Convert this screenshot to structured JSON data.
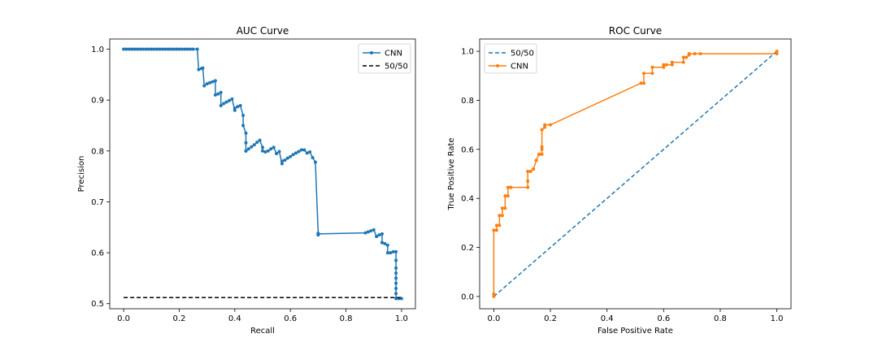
{
  "chart_data": [
    {
      "type": "line",
      "title": "AUC Curve",
      "xlabel": "Recall",
      "ylabel": "Precision",
      "xlim": [
        -0.05,
        1.05
      ],
      "ylim": [
        0.49,
        1.02
      ],
      "xticks": [
        0.0,
        0.2,
        0.4,
        0.6,
        0.8,
        1.0
      ],
      "xtick_labels": [
        "0.0",
        "0.2",
        "0.4",
        "0.6",
        "0.8",
        "1.0"
      ],
      "yticks": [
        0.5,
        0.6,
        0.7,
        0.8,
        0.9,
        1.0
      ],
      "ytick_labels": [
        "0.5",
        "0.6",
        "0.7",
        "0.8",
        "0.9",
        "1.0"
      ],
      "legend_position": "top-right",
      "series": [
        {
          "name": "CNN",
          "color": "#1f77b4",
          "style": "solid-marker",
          "x": [
            0.0,
            0.01,
            0.02,
            0.03,
            0.04,
            0.05,
            0.06,
            0.07,
            0.08,
            0.09,
            0.1,
            0.11,
            0.12,
            0.13,
            0.14,
            0.15,
            0.16,
            0.17,
            0.18,
            0.19,
            0.2,
            0.21,
            0.22,
            0.23,
            0.24,
            0.25,
            0.265,
            0.27,
            0.28,
            0.285,
            0.29,
            0.3,
            0.31,
            0.32,
            0.33,
            0.33,
            0.34,
            0.35,
            0.35,
            0.36,
            0.37,
            0.38,
            0.39,
            0.4,
            0.4,
            0.41,
            0.42,
            0.43,
            0.43,
            0.44,
            0.44,
            0.44,
            0.44,
            0.44,
            0.44,
            0.45,
            0.46,
            0.47,
            0.48,
            0.49,
            0.5,
            0.5,
            0.51,
            0.52,
            0.53,
            0.54,
            0.55,
            0.55,
            0.56,
            0.57,
            0.57,
            0.58,
            0.59,
            0.6,
            0.61,
            0.62,
            0.63,
            0.64,
            0.65,
            0.66,
            0.67,
            0.68,
            0.69,
            0.7,
            0.7,
            0.7,
            0.87,
            0.88,
            0.89,
            0.9,
            0.91,
            0.91,
            0.92,
            0.93,
            0.93,
            0.93,
            0.94,
            0.95,
            0.95,
            0.96,
            0.97,
            0.98,
            0.98,
            0.98,
            0.98,
            0.98,
            0.98,
            0.98,
            0.98,
            0.98,
            0.99,
            1.0
          ],
          "y": [
            1.0,
            1.0,
            1.0,
            1.0,
            1.0,
            1.0,
            1.0,
            1.0,
            1.0,
            1.0,
            1.0,
            1.0,
            1.0,
            1.0,
            1.0,
            1.0,
            1.0,
            1.0,
            1.0,
            1.0,
            1.0,
            1.0,
            1.0,
            1.0,
            1.0,
            1.0,
            1.0,
            0.96,
            0.962,
            0.963,
            0.928,
            0.932,
            0.934,
            0.936,
            0.938,
            0.91,
            0.912,
            0.915,
            0.889,
            0.893,
            0.896,
            0.899,
            0.902,
            0.88,
            0.884,
            0.887,
            0.889,
            0.87,
            0.85,
            0.835,
            0.816,
            0.8,
            0.8,
            0.8,
            0.8,
            0.804,
            0.808,
            0.812,
            0.817,
            0.821,
            0.807,
            0.8,
            0.798,
            0.8,
            0.804,
            0.807,
            0.795,
            0.795,
            0.799,
            0.775,
            0.78,
            0.782,
            0.786,
            0.789,
            0.793,
            0.796,
            0.799,
            0.802,
            0.802,
            0.796,
            0.798,
            0.787,
            0.778,
            0.638,
            0.635,
            0.637,
            0.639,
            0.641,
            0.643,
            0.645,
            0.632,
            0.632,
            0.635,
            0.637,
            0.62,
            0.62,
            0.618,
            0.615,
            0.6,
            0.6,
            0.602,
            0.602,
            0.585,
            0.57,
            0.56,
            0.55,
            0.54,
            0.53,
            0.52,
            0.51,
            0.51,
            0.51
          ]
        },
        {
          "name": "50/50",
          "color": "#000000",
          "style": "dashed",
          "x": [
            0.0,
            1.0
          ],
          "y": [
            0.512,
            0.512
          ]
        }
      ]
    },
    {
      "type": "line",
      "title": "ROC Curve",
      "xlabel": "False Positive Rate",
      "ylabel": "True Positive Rate",
      "xlim": [
        -0.05,
        1.05
      ],
      "ylim": [
        -0.05,
        1.05
      ],
      "xticks": [
        0.0,
        0.2,
        0.4,
        0.6,
        0.8,
        1.0
      ],
      "xtick_labels": [
        "0.0",
        "0.2",
        "0.4",
        "0.6",
        "0.8",
        "1.0"
      ],
      "yticks": [
        0.0,
        0.2,
        0.4,
        0.6,
        0.8,
        1.0
      ],
      "ytick_labels": [
        "0.0",
        "0.2",
        "0.4",
        "0.6",
        "0.8",
        "1.0"
      ],
      "legend_position": "top-left",
      "series": [
        {
          "name": "50/50",
          "color": "#1f77b4",
          "style": "dashed",
          "x": [
            0.0,
            1.0
          ],
          "y": [
            0.0,
            1.0
          ]
        },
        {
          "name": "CNN",
          "color": "#ff7f0e",
          "style": "solid-marker",
          "x": [
            0.0,
            0.0,
            0.0,
            0.01,
            0.01,
            0.02,
            0.02,
            0.03,
            0.03,
            0.04,
            0.04,
            0.05,
            0.05,
            0.06,
            0.06,
            0.12,
            0.12,
            0.12,
            0.13,
            0.14,
            0.14,
            0.15,
            0.15,
            0.16,
            0.16,
            0.17,
            0.17,
            0.17,
            0.17,
            0.18,
            0.18,
            0.2,
            0.52,
            0.53,
            0.53,
            0.56,
            0.56,
            0.6,
            0.6,
            0.61,
            0.63,
            0.63,
            0.67,
            0.67,
            0.68,
            0.69,
            0.69,
            0.71,
            0.73,
            1.0,
            1.0
          ],
          "y": [
            0.0,
            0.01,
            0.27,
            0.27,
            0.29,
            0.29,
            0.33,
            0.33,
            0.36,
            0.36,
            0.41,
            0.41,
            0.445,
            0.445,
            0.445,
            0.445,
            0.47,
            0.51,
            0.51,
            0.52,
            0.52,
            0.555,
            0.555,
            0.58,
            0.58,
            0.58,
            0.6,
            0.61,
            0.68,
            0.69,
            0.7,
            0.7,
            0.87,
            0.87,
            0.91,
            0.91,
            0.935,
            0.935,
            0.945,
            0.945,
            0.945,
            0.955,
            0.955,
            0.975,
            0.975,
            0.985,
            0.99,
            0.99,
            0.99,
            0.99,
            1.0
          ]
        }
      ]
    }
  ]
}
